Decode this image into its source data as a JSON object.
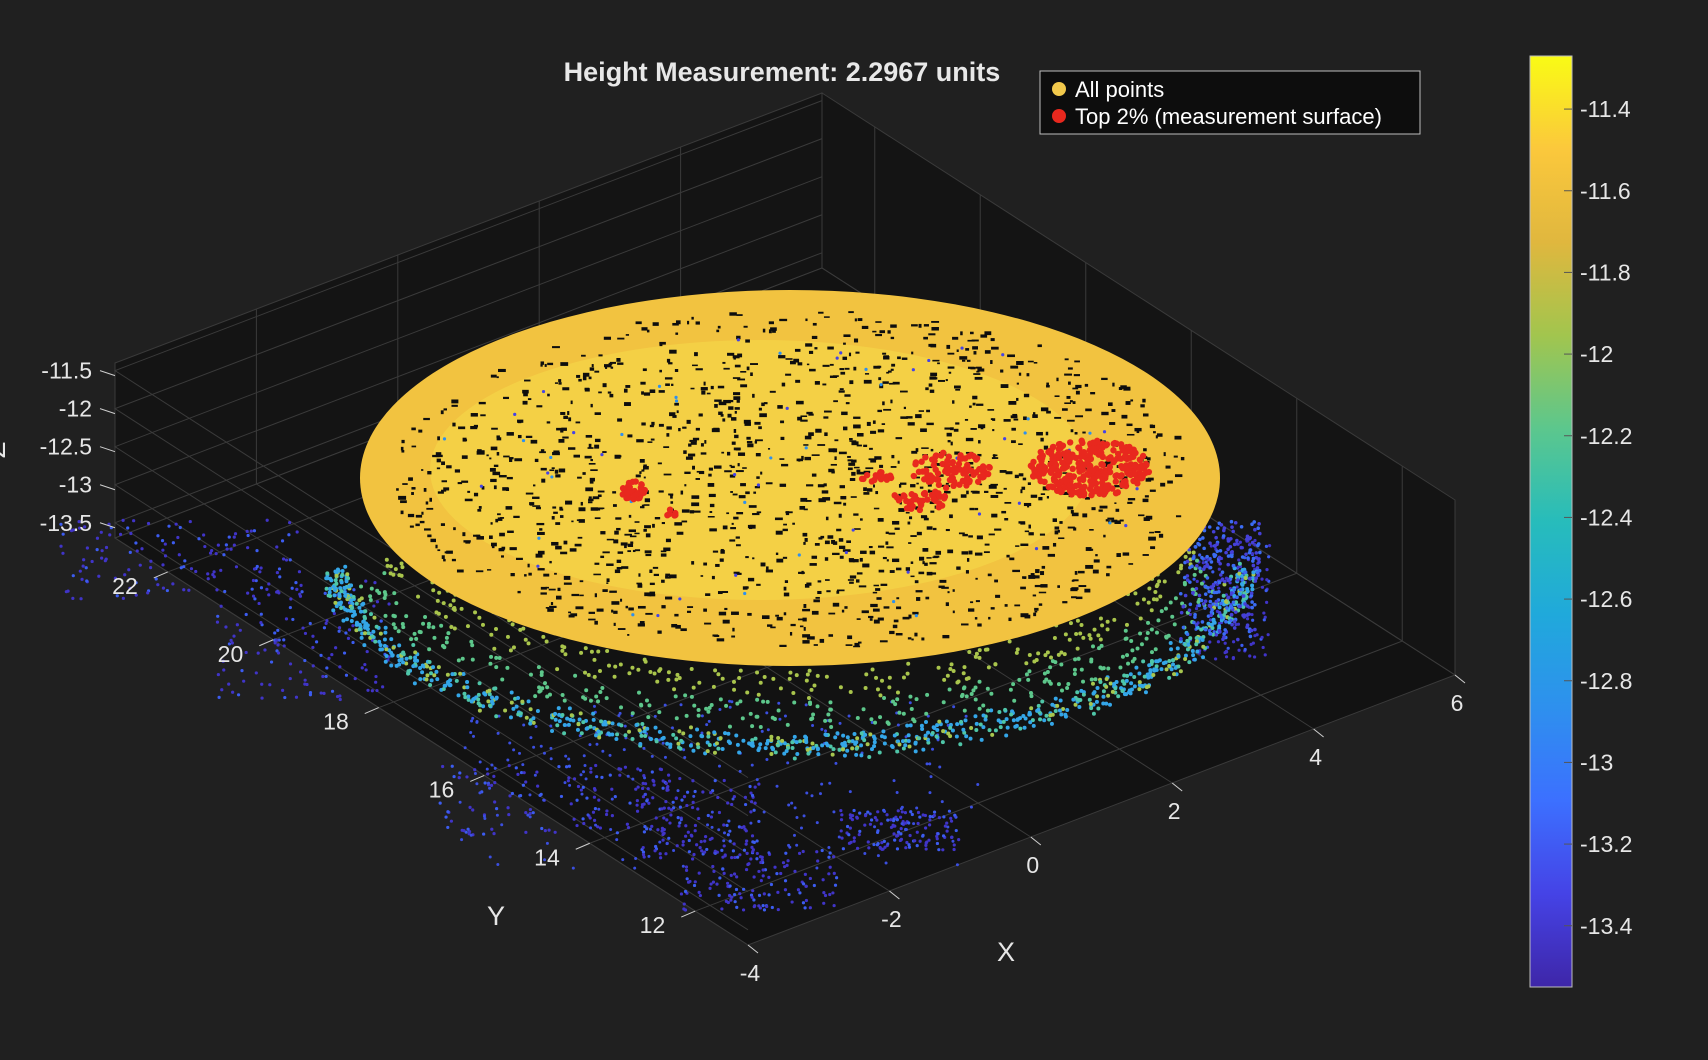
{
  "chart_data": {
    "type": "scatter",
    "title": "Height Measurement: 2.2967 units",
    "xlabel": "X",
    "ylabel": "Y",
    "zlabel": "Z",
    "xlim": [
      -4,
      6
    ],
    "ylim": [
      11,
      23
    ],
    "zlim": [
      -13.7,
      -11.4
    ],
    "x_ticks": [
      "-4",
      "-2",
      "0",
      "2",
      "4",
      "6"
    ],
    "y_ticks": [
      "12",
      "14",
      "16",
      "18",
      "20",
      "22"
    ],
    "z_ticks": [
      "-13.5",
      "-13",
      "-12.5",
      "-12",
      "-11.5"
    ],
    "grid": true,
    "legend_position": "top-right",
    "series": [
      {
        "name": "All points",
        "marker_color": "#f2c94c"
      },
      {
        "name": "Top 2% (measurement surface)",
        "marker_color": "#e8281e"
      }
    ],
    "colorbar": {
      "colormap": "parula",
      "range": [
        -13.55,
        -11.27
      ],
      "ticks": [
        "-11.4",
        "-11.6",
        "-11.8",
        "-12",
        "-12.2",
        "-12.4",
        "-12.6",
        "-12.8",
        "-13",
        "-13.2",
        "-13.4"
      ]
    }
  }
}
